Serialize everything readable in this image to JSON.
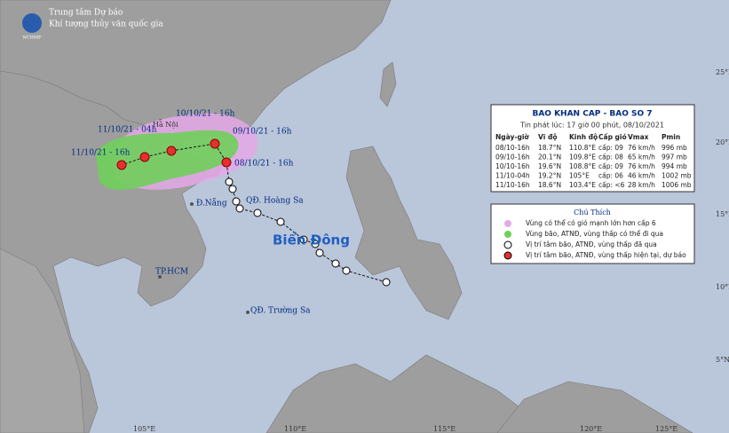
{
  "header": {
    "line1": "Trung tâm Dự báo",
    "line2": "Khí tượng thủy văn quốc gia"
  },
  "map_labels": [
    "10/10/21 - 16h",
    "11/10/21 - 04h",
    "Hà Nội",
    "09/10/21 - 16h",
    "11/10/21 - 16h",
    "08/10/21 - 16h",
    "Đ.Nẵng",
    "QĐ. Hoàng Sa",
    "Biển Đông",
    "TP.HCM",
    "QĐ. Trường Sa"
  ],
  "latitudes": [
    "25°N",
    "20°N",
    "15°N",
    "10°N",
    "5°N"
  ],
  "longitudes": [
    "105°E",
    "110°E",
    "115°E",
    "120°E",
    "125°E"
  ],
  "info_box": {
    "title": "BAO KHAN CAP - BAO SO 7",
    "issued": "Tin phát lúc: 17 giờ 00 phút, 08/10/2021",
    "columns": [
      "Ngày-giờ",
      "Vĩ độ",
      "Kinh độ",
      "Cấp gió",
      "Vmax",
      "Pmin"
    ],
    "rows": [
      [
        "08/10-16h",
        "18.7°N",
        "110.8°E",
        "cấp: 09",
        "76 km/h",
        "996 mb"
      ],
      [
        "09/10-16h",
        "20.1°N",
        "109.8°E",
        "cấp: 08",
        "65 km/h",
        "997 mb"
      ],
      [
        "10/10-16h",
        "19.6°N",
        "108.8°E",
        "cấp: 09",
        "76 km/h",
        "994 mb"
      ],
      [
        "11/10-04h",
        "19.2°N",
        "105°E",
        "cấp: 06",
        "46 km/h",
        "1002 mb"
      ],
      [
        "11/10-16h",
        "18.6°N",
        "103.4°E",
        "cấp: <6",
        "28 km/h",
        "1006 mb"
      ]
    ]
  },
  "legend": {
    "title": "Chú Thích",
    "items": [
      "Vùng có thể có gió mạnh lớn hơn cấp 6",
      "Vùng bão, ATNĐ, vùng thấp có thể đi qua",
      "Vị trí tâm bão, ATNĐ, vùng thấp đã qua",
      "Vị trí tâm bão, ATNĐ, vùng thấp hiện tại, dự báo"
    ]
  }
}
